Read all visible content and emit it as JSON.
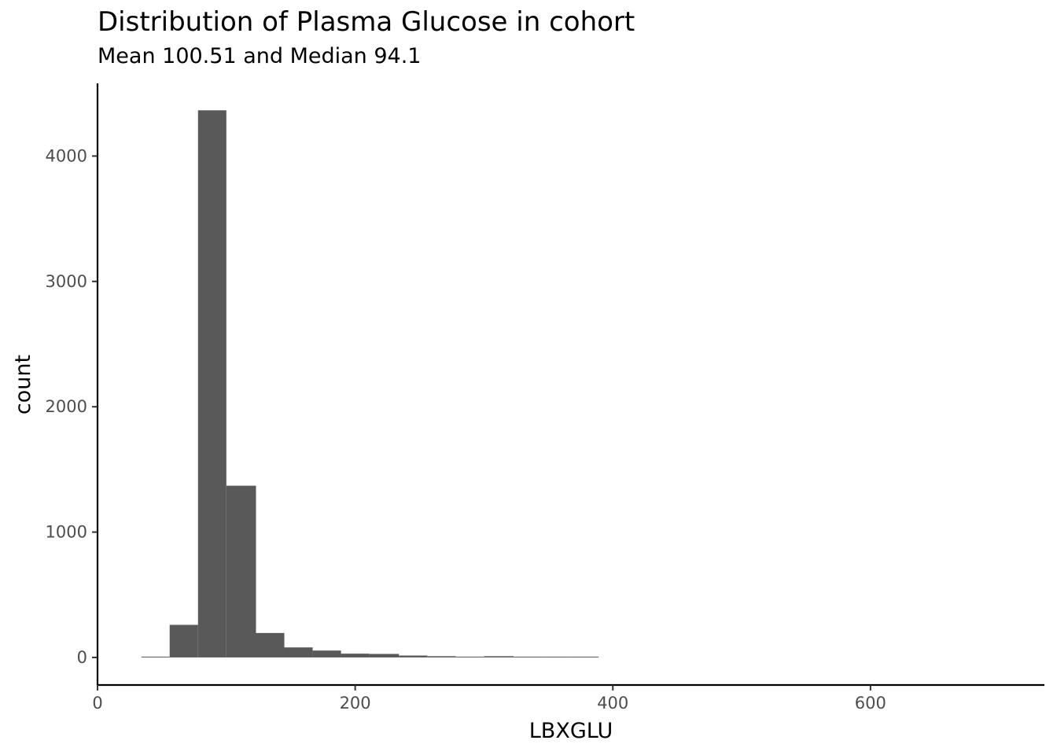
{
  "chart_data": {
    "type": "bar",
    "subtype": "histogram",
    "title": "Distribution of Plasma Glucose in cohort",
    "subtitle": "Mean 100.51 and Median 94.1",
    "xlabel": "LBXGLU",
    "ylabel": "count",
    "xlim": [
      0,
      735
    ],
    "ylim": [
      -220,
      4580
    ],
    "x_ticks": [
      0,
      200,
      400,
      600
    ],
    "y_ticks": [
      0,
      1000,
      2000,
      3000,
      4000
    ],
    "bar_color": "#595959",
    "grid": false,
    "bins": [
      {
        "x0": 34,
        "x1": 56,
        "count": 5
      },
      {
        "x0": 56,
        "x1": 78,
        "count": 260
      },
      {
        "x0": 78,
        "x1": 100,
        "count": 4365
      },
      {
        "x0": 100,
        "x1": 123,
        "count": 1370
      },
      {
        "x0": 123,
        "x1": 145,
        "count": 195
      },
      {
        "x0": 145,
        "x1": 167,
        "count": 80
      },
      {
        "x0": 167,
        "x1": 189,
        "count": 55
      },
      {
        "x0": 189,
        "x1": 211,
        "count": 30
      },
      {
        "x0": 211,
        "x1": 234,
        "count": 28
      },
      {
        "x0": 234,
        "x1": 256,
        "count": 15
      },
      {
        "x0": 256,
        "x1": 278,
        "count": 10
      },
      {
        "x0": 278,
        "x1": 300,
        "count": 6
      },
      {
        "x0": 300,
        "x1": 323,
        "count": 10
      },
      {
        "x0": 323,
        "x1": 345,
        "count": 4
      },
      {
        "x0": 345,
        "x1": 367,
        "count": 3
      },
      {
        "x0": 367,
        "x1": 389,
        "count": 3
      }
    ]
  }
}
